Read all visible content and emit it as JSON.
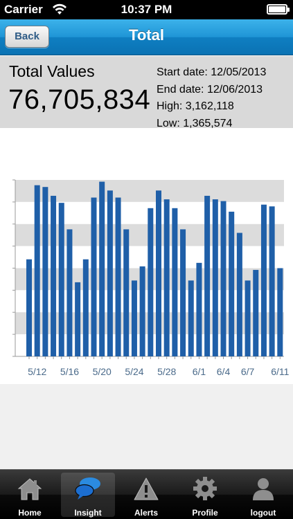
{
  "status_bar": {
    "carrier": "Carrier",
    "time": "10:37 PM"
  },
  "nav": {
    "back_label": "Back",
    "title": "Total"
  },
  "summary": {
    "total_label": "Total Values",
    "total_value": "76,705,834",
    "start_date": "Start date: 12/05/2013",
    "end_date": "End date: 12/06/2013",
    "high": "High: 3,162,118",
    "low": "Low: 1,365,574"
  },
  "chart_data": {
    "type": "bar",
    "title": "",
    "xlabel": "",
    "ylabel": "",
    "grid": true,
    "color": "#1f5fa8",
    "x_tick_labels": [
      "5/12",
      "5/16",
      "5/20",
      "5/24",
      "5/28",
      "6/1",
      "6/4",
      "6/7",
      "6/11"
    ],
    "x_tick_index": [
      1,
      5,
      9,
      13,
      17,
      21,
      24,
      27,
      31
    ],
    "values": [
      0.55,
      0.97,
      0.96,
      0.91,
      0.87,
      0.72,
      0.42,
      0.55,
      0.9,
      0.99,
      0.94,
      0.9,
      0.72,
      0.43,
      0.51,
      0.84,
      0.94,
      0.89,
      0.84,
      0.72,
      0.43,
      0.53,
      0.91,
      0.89,
      0.88,
      0.82,
      0.7,
      0.43,
      0.49,
      0.86,
      0.85,
      0.5
    ]
  },
  "tab_bar": {
    "tabs": [
      {
        "label": "Home",
        "icon": "home-icon"
      },
      {
        "label": "Insight",
        "icon": "chat-bubbles-icon"
      },
      {
        "label": "Alerts",
        "icon": "warning-icon"
      },
      {
        "label": "Profile",
        "icon": "gear-icon"
      },
      {
        "label": "logout",
        "icon": "person-icon"
      }
    ],
    "selected": "Insight"
  }
}
